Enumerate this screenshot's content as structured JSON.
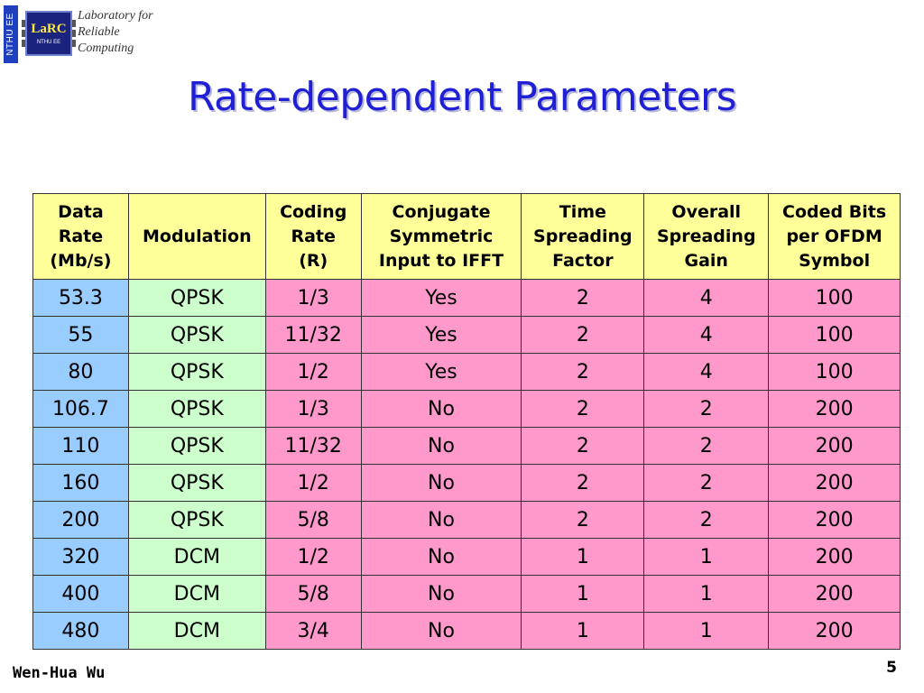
{
  "logo": {
    "side_tab": "NTHU EE",
    "chip_brand": "LaRC",
    "chip_sub": "NTHU EE",
    "lines": [
      "Laboratory for",
      "Reliable",
      "Computing"
    ]
  },
  "slide": {
    "title": "Rate-dependent Parameters",
    "author": "Wen-Hua Wu",
    "page_number": "5"
  },
  "table": {
    "headers": [
      "Data Rate (Mb/s)",
      "Modulation",
      "Coding Rate (R)",
      "Conjugate Symmetric Input to IFFT",
      "Time Spreading Factor",
      "Overall Spreading Gain",
      "Coded Bits per OFDM Symbol"
    ],
    "header_lines": [
      [
        "Data",
        "Rate",
        "(Mb/s)"
      ],
      [
        "Modulation"
      ],
      [
        "Coding",
        "Rate",
        "(R)"
      ],
      [
        "Conjugate",
        "Symmetric",
        "Input to IFFT"
      ],
      [
        "Time",
        "Spreading",
        "Factor"
      ],
      [
        "Overall",
        "Spreading",
        "Gain"
      ],
      [
        "Coded Bits",
        "per OFDM",
        "Symbol"
      ]
    ],
    "rows": [
      [
        "53.3",
        "QPSK",
        "1/3",
        "Yes",
        "2",
        "4",
        "100"
      ],
      [
        "55",
        "QPSK",
        "11/32",
        "Yes",
        "2",
        "4",
        "100"
      ],
      [
        "80",
        "QPSK",
        "1/2",
        "Yes",
        "2",
        "4",
        "100"
      ],
      [
        "106.7",
        "QPSK",
        "1/3",
        "No",
        "2",
        "2",
        "200"
      ],
      [
        "110",
        "QPSK",
        "11/32",
        "No",
        "2",
        "2",
        "200"
      ],
      [
        "160",
        "QPSK",
        "1/2",
        "No",
        "2",
        "2",
        "200"
      ],
      [
        "200",
        "QPSK",
        "5/8",
        "No",
        "2",
        "2",
        "200"
      ],
      [
        "320",
        "DCM",
        "1/2",
        "No",
        "1",
        "1",
        "200"
      ],
      [
        "400",
        "DCM",
        "5/8",
        "No",
        "1",
        "1",
        "200"
      ],
      [
        "480",
        "DCM",
        "3/4",
        "No",
        "1",
        "1",
        "200"
      ]
    ]
  },
  "colors": {
    "title": "#1f1fd6",
    "header_bg": "#ffff99",
    "rate_col_bg": "#99ccff",
    "modulation_col_bg": "#ccffcc",
    "modulation_text": "#0000ee",
    "other_cols_bg": "#ff99cc"
  }
}
